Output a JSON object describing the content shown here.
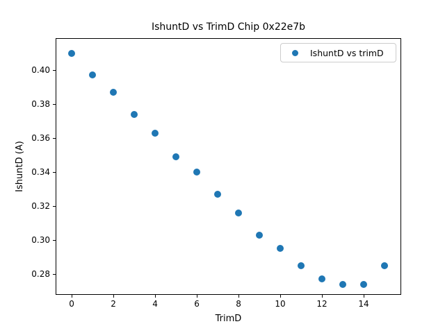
{
  "chart_data": {
    "type": "scatter",
    "title": "IshuntD vs TrimD Chip 0x22e7b",
    "xlabel": "TrimD",
    "ylabel": "IshuntD (A)",
    "legend": {
      "label": "IshuntD vs trimD",
      "position": "upper right"
    },
    "marker_color": "#1f77b4",
    "x": [
      0,
      1,
      2,
      3,
      4,
      5,
      6,
      7,
      8,
      9,
      10,
      11,
      12,
      13,
      14,
      15
    ],
    "y": [
      0.41,
      0.397,
      0.387,
      0.374,
      0.363,
      0.349,
      0.34,
      0.327,
      0.316,
      0.303,
      0.295,
      0.285,
      0.277,
      0.274,
      0.274,
      0.285
    ],
    "xlim": [
      -0.77,
      15.8
    ],
    "ylim": [
      0.2678,
      0.4188
    ],
    "xticks": {
      "values": [
        0,
        2,
        4,
        6,
        8,
        10,
        12,
        14
      ],
      "labels": [
        "0",
        "2",
        "4",
        "6",
        "8",
        "10",
        "12",
        "14"
      ]
    },
    "yticks": {
      "values": [
        0.28,
        0.3,
        0.32,
        0.34,
        0.36,
        0.38,
        0.4
      ],
      "labels": [
        "0.28",
        "0.30",
        "0.32",
        "0.34",
        "0.36",
        "0.38",
        "0.40"
      ]
    },
    "grid": false
  }
}
